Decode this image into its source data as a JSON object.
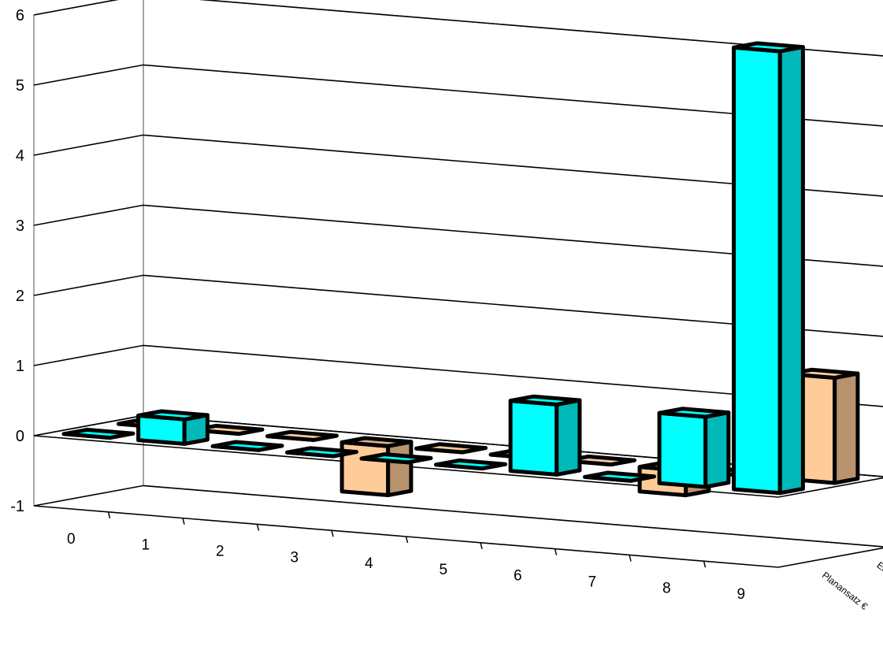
{
  "chart_data": {
    "type": "bar",
    "categories": [
      "0",
      "1",
      "2",
      "3",
      "4",
      "5",
      "6",
      "7",
      "8",
      "9"
    ],
    "series": [
      {
        "name": "Ergebnis €",
        "color": "#ffcc99",
        "values": [
          0,
          0,
          0,
          -0.7,
          0,
          0,
          0,
          -0.35,
          0,
          1.5
        ]
      },
      {
        "name": "Planansatz €",
        "color": "#00ffff",
        "values": [
          0,
          0.35,
          0,
          0,
          0,
          0,
          1.0,
          0,
          1.0,
          6.3
        ]
      }
    ],
    "y_ticks": [
      "-1",
      "0",
      "1",
      "2",
      "3",
      "4",
      "5",
      "6"
    ],
    "ylim": [
      -1,
      6
    ],
    "grid": true,
    "legend": "depth-axis labels"
  }
}
